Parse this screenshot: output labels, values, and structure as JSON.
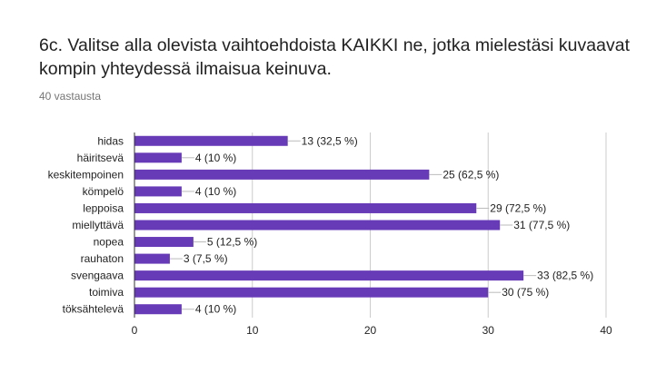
{
  "question": {
    "title": "6c. Valitse alla olevista vaihtoehdoista KAIKKI ne, jotka mielestäsi kuvaavat kompin yhteydessä ilmaisua keinuva.",
    "response_count": "40 vastausta"
  },
  "colors": {
    "bar": "#673ab7",
    "grid": "#cccccc",
    "axis": "#333333",
    "text": "#222222",
    "leader": "#bbbbbb"
  },
  "chart_data": {
    "type": "bar",
    "orientation": "horizontal",
    "categories": [
      "hidas",
      "häiritsevä",
      "keskitempoinen",
      "kömpelö",
      "leppoisa",
      "miellyttävä",
      "nopea",
      "rauhaton",
      "svengaava",
      "toimiva",
      "töksähtelevä"
    ],
    "values": [
      13,
      4,
      25,
      4,
      29,
      31,
      5,
      3,
      33,
      30,
      4
    ],
    "data_labels": [
      "13 (32,5 %)",
      "4 (10 %)",
      "25 (62,5 %)",
      "4 (10 %)",
      "29 (72,5 %)",
      "31 (77,5 %)",
      "5 (12,5 %)",
      "3 (7,5 %)",
      "33 (82,5 %)",
      "30 (75 %)",
      "4 (10 %)"
    ],
    "x_ticks": [
      0,
      10,
      20,
      30,
      40
    ],
    "xlim": [
      0,
      40
    ],
    "grid": true
  }
}
